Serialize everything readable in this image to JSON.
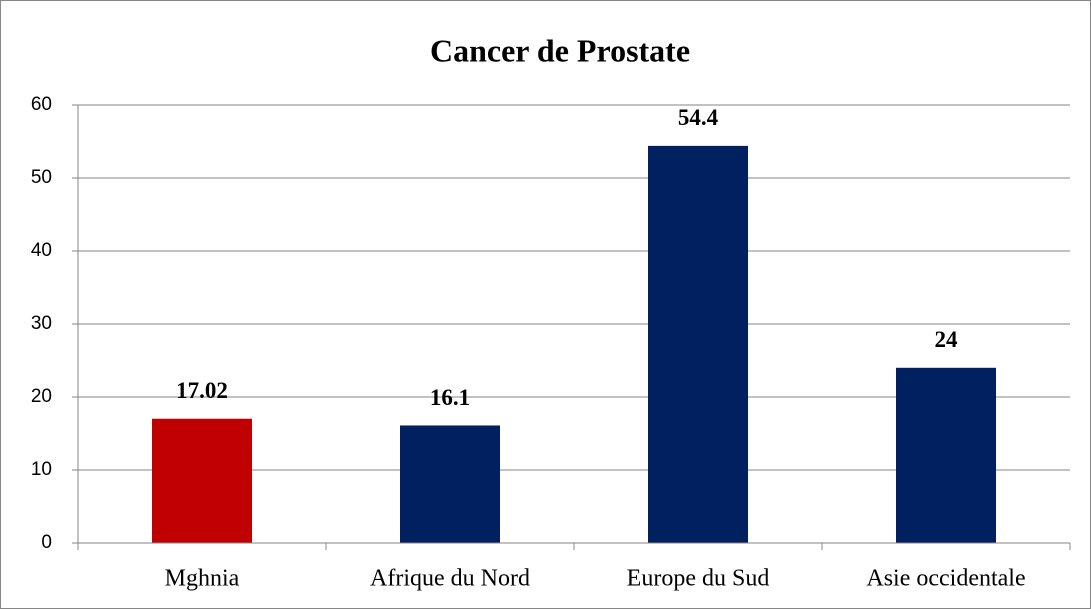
{
  "chart_data": {
    "type": "bar",
    "title": "Cancer de Prostate",
    "categories": [
      "Mghnia",
      "Afrique du Nord",
      "Europe du Sud",
      "Asie occidentale"
    ],
    "values": [
      17.02,
      16.1,
      54.4,
      24
    ],
    "colors": [
      "#c00000",
      "#002060",
      "#002060",
      "#002060"
    ],
    "ylim": [
      0,
      60
    ],
    "yticks": [
      0,
      10,
      20,
      30,
      40,
      50,
      60
    ],
    "grid": true
  }
}
